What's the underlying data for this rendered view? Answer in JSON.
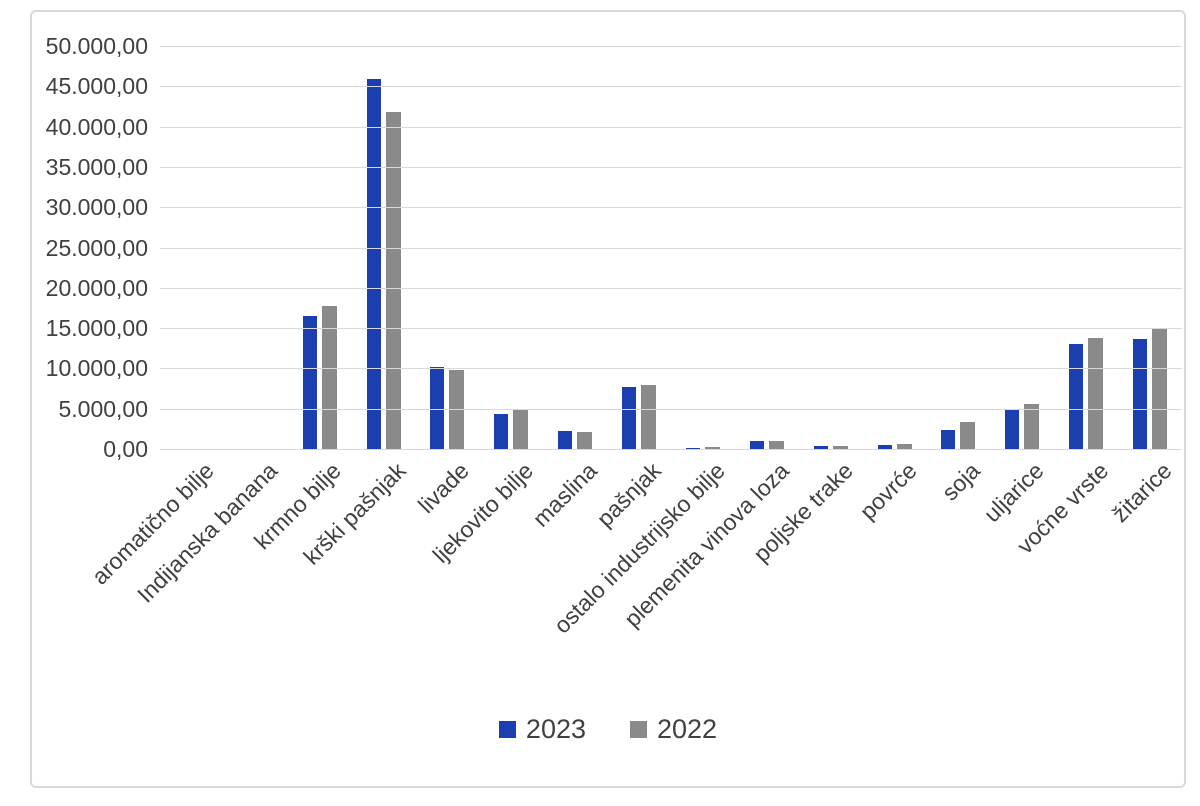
{
  "chart_data": {
    "type": "bar",
    "title": "",
    "categories": [
      "aromatično bilje",
      "Indijanska banana",
      "krmno bilje",
      "krški pašnjak",
      "livade",
      "ljekovito bilje",
      "maslina",
      "pašnjak",
      "ostalo industrijsko bilje",
      "plemenita vinova loza",
      "poljske trake",
      "povrće",
      "soja",
      "uljarice",
      "voćne vrste",
      "žitarice"
    ],
    "series": [
      {
        "name": "2023",
        "color": "#1b3fb0",
        "values": [
          0,
          0,
          16500,
          45900,
          10200,
          4300,
          2200,
          7700,
          100,
          1000,
          400,
          450,
          2400,
          4900,
          13000,
          13700
        ]
      },
      {
        "name": "2022",
        "color": "#8a8a8a",
        "values": [
          0,
          0,
          17700,
          41800,
          9800,
          4800,
          2100,
          8000,
          300,
          1000,
          350,
          650,
          3300,
          5600,
          13800,
          15000
        ]
      }
    ],
    "ylim": [
      0,
      50000
    ],
    "ytick_step": 5000,
    "ytick_labels": [
      "0,00",
      "5.000,00",
      "10.000,00",
      "15.000,00",
      "20.000,00",
      "25.000,00",
      "30.000,00",
      "35.000,00",
      "40.000,00",
      "45.000,00",
      "50.000,00"
    ],
    "grid": true,
    "legend_position": "bottom",
    "xlabel": "",
    "ylabel": ""
  },
  "colors": {
    "series_2023": "#1b3fb0",
    "series_2022": "#8a8a8a",
    "gridline": "#d9d9d9",
    "frame_border": "#d9d9d9",
    "text": "#404040",
    "background": "#ffffff"
  },
  "legend": {
    "items": [
      {
        "label": "2023"
      },
      {
        "label": "2022"
      }
    ]
  }
}
